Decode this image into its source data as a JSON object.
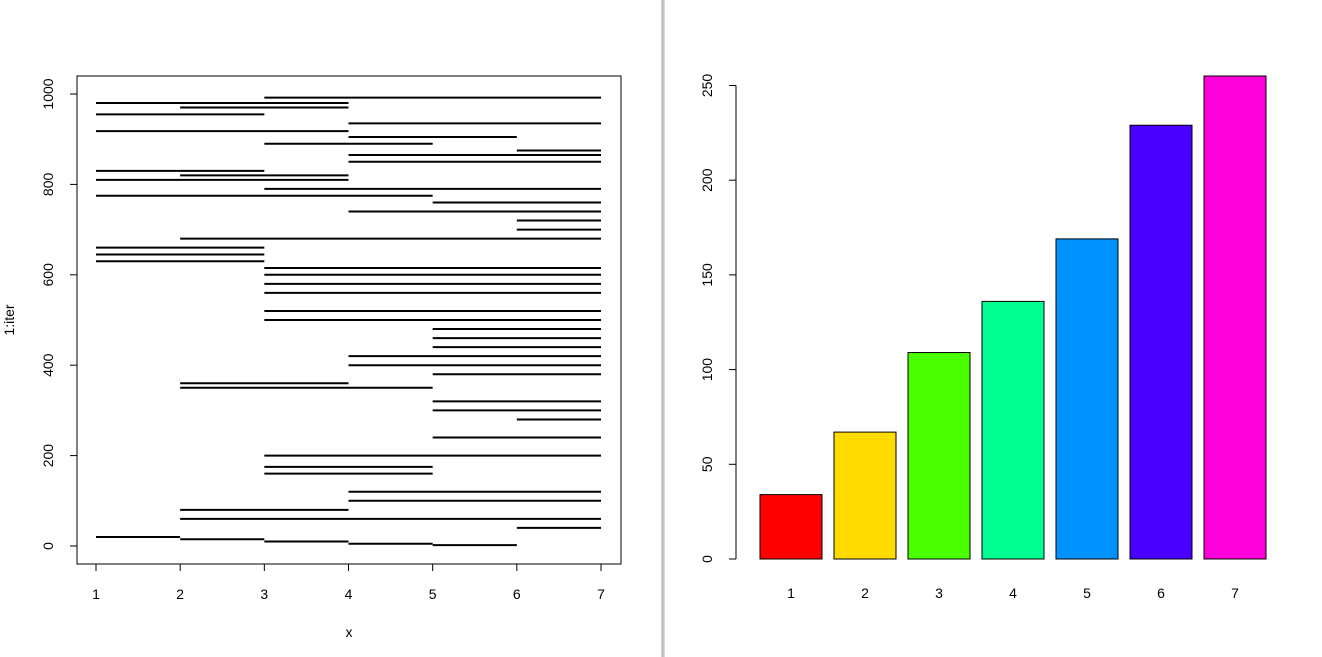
{
  "chart_data": [
    {
      "type": "segments",
      "title": "",
      "xlabel": "x",
      "ylabel": "1:iter",
      "xlim": [
        1,
        7
      ],
      "ylim": [
        0,
        1000
      ],
      "xticks": [
        "1",
        "2",
        "3",
        "4",
        "5",
        "6",
        "7"
      ],
      "yticks": [
        "0",
        "200",
        "400",
        "600",
        "800",
        "1000"
      ],
      "color": "#000000",
      "description_note": "horizontal line segments, one per iteration, spanning x ranges",
      "segments": [
        {
          "iter": 20,
          "x0": 1,
          "x1": 2
        },
        {
          "iter": 15,
          "x0": 2,
          "x1": 3
        },
        {
          "iter": 10,
          "x0": 3,
          "x1": 4
        },
        {
          "iter": 5,
          "x0": 4,
          "x1": 5
        },
        {
          "iter": 2,
          "x0": 5,
          "x1": 6
        },
        {
          "iter": 80,
          "x0": 2,
          "x1": 4
        },
        {
          "iter": 60,
          "x0": 2,
          "x1": 7
        },
        {
          "iter": 40,
          "x0": 6,
          "x1": 7
        },
        {
          "iter": 100,
          "x0": 4,
          "x1": 7
        },
        {
          "iter": 120,
          "x0": 4,
          "x1": 7
        },
        {
          "iter": 160,
          "x0": 3,
          "x1": 5
        },
        {
          "iter": 175,
          "x0": 3,
          "x1": 5
        },
        {
          "iter": 200,
          "x0": 3,
          "x1": 7
        },
        {
          "iter": 240,
          "x0": 5,
          "x1": 7
        },
        {
          "iter": 280,
          "x0": 6,
          "x1": 7
        },
        {
          "iter": 300,
          "x0": 5,
          "x1": 7
        },
        {
          "iter": 320,
          "x0": 5,
          "x1": 7
        },
        {
          "iter": 350,
          "x0": 2,
          "x1": 5
        },
        {
          "iter": 360,
          "x0": 2,
          "x1": 4
        },
        {
          "iter": 380,
          "x0": 5,
          "x1": 7
        },
        {
          "iter": 400,
          "x0": 4,
          "x1": 7
        },
        {
          "iter": 420,
          "x0": 4,
          "x1": 7
        },
        {
          "iter": 440,
          "x0": 5,
          "x1": 7
        },
        {
          "iter": 460,
          "x0": 5,
          "x1": 7
        },
        {
          "iter": 480,
          "x0": 5,
          "x1": 7
        },
        {
          "iter": 500,
          "x0": 3,
          "x1": 7
        },
        {
          "iter": 520,
          "x0": 3,
          "x1": 7
        },
        {
          "iter": 560,
          "x0": 3,
          "x1": 7
        },
        {
          "iter": 580,
          "x0": 3,
          "x1": 7
        },
        {
          "iter": 600,
          "x0": 3,
          "x1": 7
        },
        {
          "iter": 615,
          "x0": 3,
          "x1": 7
        },
        {
          "iter": 630,
          "x0": 1,
          "x1": 3
        },
        {
          "iter": 645,
          "x0": 1,
          "x1": 3
        },
        {
          "iter": 660,
          "x0": 1,
          "x1": 3
        },
        {
          "iter": 680,
          "x0": 2,
          "x1": 7
        },
        {
          "iter": 700,
          "x0": 6,
          "x1": 7
        },
        {
          "iter": 720,
          "x0": 6,
          "x1": 7
        },
        {
          "iter": 740,
          "x0": 4,
          "x1": 7
        },
        {
          "iter": 760,
          "x0": 5,
          "x1": 7
        },
        {
          "iter": 775,
          "x0": 1,
          "x1": 5
        },
        {
          "iter": 790,
          "x0": 3,
          "x1": 7
        },
        {
          "iter": 810,
          "x0": 1,
          "x1": 4
        },
        {
          "iter": 820,
          "x0": 2,
          "x1": 4
        },
        {
          "iter": 830,
          "x0": 1,
          "x1": 3
        },
        {
          "iter": 850,
          "x0": 4,
          "x1": 7
        },
        {
          "iter": 865,
          "x0": 4,
          "x1": 7
        },
        {
          "iter": 875,
          "x0": 6,
          "x1": 7
        },
        {
          "iter": 890,
          "x0": 3,
          "x1": 5
        },
        {
          "iter": 905,
          "x0": 4,
          "x1": 6
        },
        {
          "iter": 918,
          "x0": 1,
          "x1": 4
        },
        {
          "iter": 935,
          "x0": 4,
          "x1": 7
        },
        {
          "iter": 955,
          "x0": 1,
          "x1": 3
        },
        {
          "iter": 970,
          "x0": 2,
          "x1": 4
        },
        {
          "iter": 980,
          "x0": 1,
          "x1": 4
        },
        {
          "iter": 992,
          "x0": 3,
          "x1": 7
        }
      ]
    },
    {
      "type": "bar",
      "title": "",
      "xlabel": "",
      "ylabel": "",
      "categories": [
        "1",
        "2",
        "3",
        "4",
        "5",
        "6",
        "7"
      ],
      "values": [
        34,
        67,
        109,
        136,
        169,
        229,
        255
      ],
      "colors": [
        "#FF0000",
        "#FFDB00",
        "#49FF00",
        "#00FF92",
        "#0092FF",
        "#4900FF",
        "#FF00DB"
      ],
      "ylim": [
        0,
        255
      ],
      "yticks": [
        "0",
        "50",
        "100",
        "150",
        "200",
        "250"
      ]
    }
  ]
}
